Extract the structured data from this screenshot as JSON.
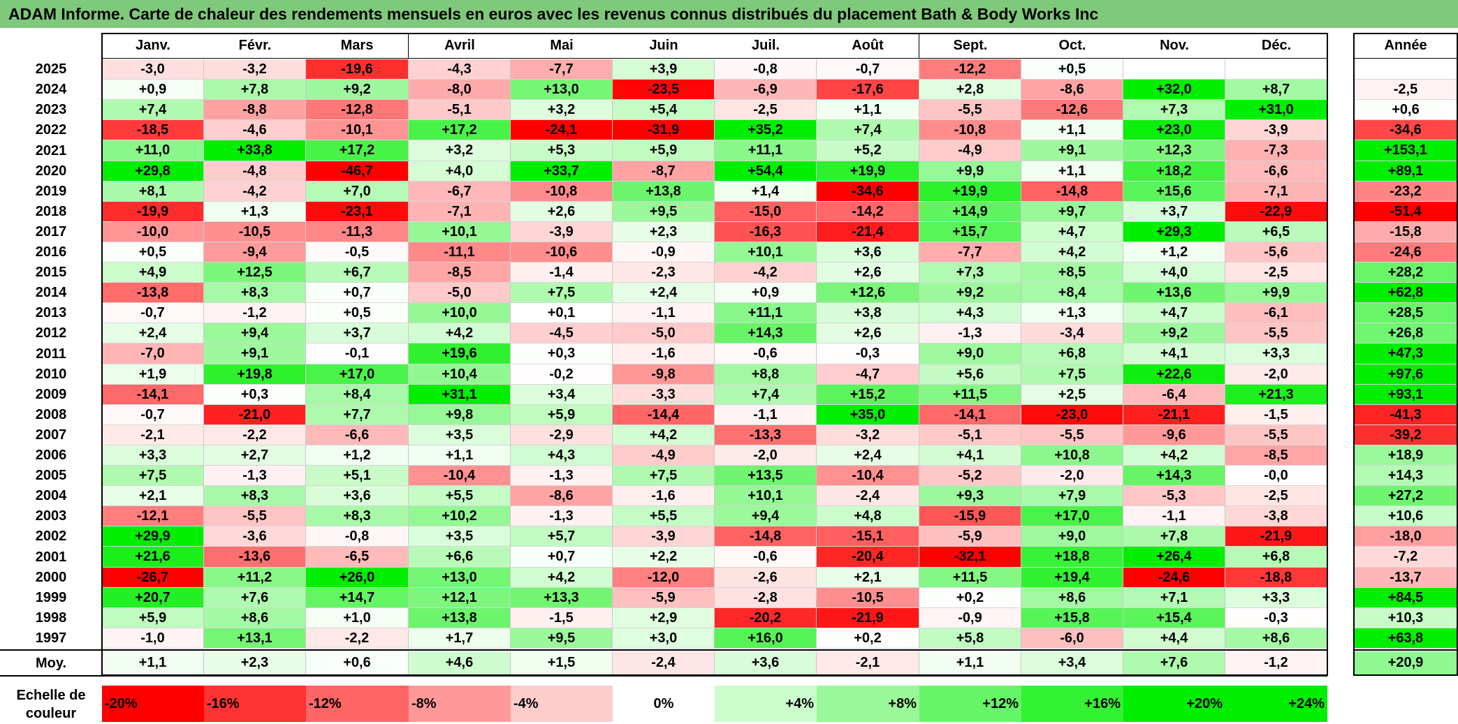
{
  "title": "ADAM Informe. Carte de chaleur des rendements mensuels en euros avec les revenus connus distribués du placement Bath & Body Works Inc",
  "chart_data": {
    "type": "heatmap",
    "title": "ADAM Informe. Carte de chaleur des rendements mensuels en euros avec les revenus connus distribués du placement Bath & Body Works Inc",
    "columns": [
      "Janv.",
      "Févr.",
      "Mars",
      "Avril",
      "Mai",
      "Juin",
      "Juil.",
      "Août",
      "Sept.",
      "Oct.",
      "Nov.",
      "Déc."
    ],
    "year_column_label": "Année",
    "rows": [
      {
        "year": "2025",
        "values": [
          "-3,0",
          "-3,2",
          "-19,6",
          "-4,3",
          "-7,7",
          "+3,9",
          "-0,8",
          "-0,7",
          "-12,2",
          "+0,5",
          "",
          ""
        ],
        "annual": ""
      },
      {
        "year": "2024",
        "values": [
          "+0,9",
          "+7,8",
          "+9,2",
          "-8,0",
          "+13,0",
          "-23,5",
          "-6,9",
          "-17,6",
          "+2,8",
          "-8,6",
          "+32,0",
          "+8,7"
        ],
        "annual": "-2,5"
      },
      {
        "year": "2023",
        "values": [
          "+7,4",
          "-8,8",
          "-12,8",
          "-5,1",
          "+3,2",
          "+5,4",
          "-2,5",
          "+1,1",
          "-5,5",
          "-12,6",
          "+7,3",
          "+31,0"
        ],
        "annual": "+0,6"
      },
      {
        "year": "2022",
        "values": [
          "-18,5",
          "-4,6",
          "-10,1",
          "+17,2",
          "-24,1",
          "-31,9",
          "+35,2",
          "+7,4",
          "-10,8",
          "+1,1",
          "+23,0",
          "-3,9"
        ],
        "annual": "-34,6"
      },
      {
        "year": "2021",
        "values": [
          "+11,0",
          "+33,8",
          "+17,2",
          "+3,2",
          "+5,3",
          "+5,9",
          "+11,1",
          "+5,2",
          "-4,9",
          "+9,1",
          "+12,3",
          "-7,3"
        ],
        "annual": "+153,1"
      },
      {
        "year": "2020",
        "values": [
          "+29,8",
          "-4,8",
          "-46,7",
          "+4,0",
          "+33,7",
          "-8,7",
          "+54,4",
          "+19,9",
          "+9,9",
          "+1,1",
          "+18,2",
          "-6,6"
        ],
        "annual": "+89,1"
      },
      {
        "year": "2019",
        "values": [
          "+8,1",
          "-4,2",
          "+7,0",
          "-6,7",
          "-10,8",
          "+13,8",
          "+1,4",
          "-34,6",
          "+19,9",
          "-14,8",
          "+15,6",
          "-7,1"
        ],
        "annual": "-23,2"
      },
      {
        "year": "2018",
        "values": [
          "-19,9",
          "+1,3",
          "-23,1",
          "-7,1",
          "+2,6",
          "+9,5",
          "-15,0",
          "-14,2",
          "+14,9",
          "+9,7",
          "+3,7",
          "-22,9"
        ],
        "annual": "-51,4"
      },
      {
        "year": "2017",
        "values": [
          "-10,0",
          "-10,5",
          "-11,3",
          "+10,1",
          "-3,9",
          "+2,3",
          "-16,3",
          "-21,4",
          "+15,7",
          "+4,7",
          "+29,3",
          "+6,5"
        ],
        "annual": "-15,8"
      },
      {
        "year": "2016",
        "values": [
          "+0,5",
          "-9,4",
          "-0,5",
          "-11,1",
          "-10,6",
          "-0,9",
          "+10,1",
          "+3,6",
          "-7,7",
          "+4,2",
          "+1,2",
          "-5,6"
        ],
        "annual": "-24,6"
      },
      {
        "year": "2015",
        "values": [
          "+4,9",
          "+12,5",
          "+6,7",
          "-8,5",
          "-1,4",
          "-2,3",
          "-4,2",
          "+2,6",
          "+7,3",
          "+8,5",
          "+4,0",
          "-2,5"
        ],
        "annual": "+28,2"
      },
      {
        "year": "2014",
        "values": [
          "-13,8",
          "+8,3",
          "+0,7",
          "-5,0",
          "+7,5",
          "+2,4",
          "+0,9",
          "+12,6",
          "+9,2",
          "+8,4",
          "+13,6",
          "+9,9"
        ],
        "annual": "+62,8"
      },
      {
        "year": "2013",
        "values": [
          "-0,7",
          "-1,2",
          "+0,5",
          "+10,0",
          "+0,1",
          "-1,1",
          "+11,1",
          "+3,8",
          "+4,3",
          "+1,3",
          "+4,7",
          "-6,1"
        ],
        "annual": "+28,5"
      },
      {
        "year": "2012",
        "values": [
          "+2,4",
          "+9,4",
          "+3,7",
          "+4,2",
          "-4,5",
          "-5,0",
          "+14,3",
          "+2,6",
          "-1,3",
          "-3,4",
          "+9,2",
          "-5,5"
        ],
        "annual": "+26,8"
      },
      {
        "year": "2011",
        "values": [
          "-7,0",
          "+9,1",
          "-0,1",
          "+19,6",
          "+0,3",
          "-1,6",
          "-0,6",
          "-0,3",
          "+9,0",
          "+6,8",
          "+4,1",
          "+3,3"
        ],
        "annual": "+47,3"
      },
      {
        "year": "2010",
        "values": [
          "+1,9",
          "+19,8",
          "+17,0",
          "+10,4",
          "-0,2",
          "-9,8",
          "+8,8",
          "-4,7",
          "+5,6",
          "+7,5",
          "+22,6",
          "-2,0"
        ],
        "annual": "+97,6"
      },
      {
        "year": "2009",
        "values": [
          "-14,1",
          "+0,3",
          "+8,4",
          "+31,1",
          "+3,4",
          "-3,3",
          "+7,4",
          "+15,2",
          "+11,5",
          "+2,5",
          "-6,4",
          "+21,3"
        ],
        "annual": "+93,1"
      },
      {
        "year": "2008",
        "values": [
          "-0,7",
          "-21,0",
          "+7,7",
          "+9,8",
          "+5,9",
          "-14,4",
          "-1,1",
          "+35,0",
          "-14,1",
          "-23,0",
          "-21,1",
          "-1,5"
        ],
        "annual": "-41,3"
      },
      {
        "year": "2007",
        "values": [
          "-2,1",
          "-2,2",
          "-6,6",
          "+3,5",
          "-2,9",
          "+4,2",
          "-13,3",
          "-3,2",
          "-5,1",
          "-5,5",
          "-9,6",
          "-5,5"
        ],
        "annual": "-39,2"
      },
      {
        "year": "2006",
        "values": [
          "+3,3",
          "+2,7",
          "+1,2",
          "+1,1",
          "+4,3",
          "-4,9",
          "-2,0",
          "+2,4",
          "+4,1",
          "+10,8",
          "+4,2",
          "-8,5"
        ],
        "annual": "+18,9"
      },
      {
        "year": "2005",
        "values": [
          "+7,5",
          "-1,3",
          "+5,1",
          "-10,4",
          "-1,3",
          "+7,5",
          "+13,5",
          "-10,4",
          "-5,2",
          "-2,0",
          "+14,3",
          "-0,0"
        ],
        "annual": "+14,3"
      },
      {
        "year": "2004",
        "values": [
          "+2,1",
          "+8,3",
          "+3,6",
          "+5,5",
          "-8,6",
          "-1,6",
          "+10,1",
          "-2,4",
          "+9,3",
          "+7,9",
          "-5,3",
          "-2,5"
        ],
        "annual": "+27,2"
      },
      {
        "year": "2003",
        "values": [
          "-12,1",
          "-5,5",
          "+8,3",
          "+10,2",
          "-1,3",
          "+5,5",
          "+9,4",
          "+4,8",
          "-15,9",
          "+17,0",
          "-1,1",
          "-3,8"
        ],
        "annual": "+10,6"
      },
      {
        "year": "2002",
        "values": [
          "+29,9",
          "-3,6",
          "-0,8",
          "+3,5",
          "+5,7",
          "-3,9",
          "-14,8",
          "-15,1",
          "-5,9",
          "+9,0",
          "+7,8",
          "-21,9"
        ],
        "annual": "-18,0"
      },
      {
        "year": "2001",
        "values": [
          "+21,6",
          "-13,6",
          "-6,5",
          "+6,6",
          "+0,7",
          "+2,2",
          "-0,6",
          "-20,4",
          "-32,1",
          "+18,8",
          "+26,4",
          "+6,8"
        ],
        "annual": "-7,2"
      },
      {
        "year": "2000",
        "values": [
          "-26,7",
          "+11,2",
          "+26,0",
          "+13,0",
          "+4,2",
          "-12,0",
          "-2,6",
          "+2,1",
          "+11,5",
          "+19,4",
          "-24,6",
          "-18,8"
        ],
        "annual": "-13,7"
      },
      {
        "year": "1999",
        "values": [
          "+20,7",
          "+7,6",
          "+14,7",
          "+12,1",
          "+13,3",
          "-5,9",
          "-2,8",
          "-10,5",
          "+0,2",
          "+8,6",
          "+7,1",
          "+3,3"
        ],
        "annual": "+84,5"
      },
      {
        "year": "1998",
        "values": [
          "+5,9",
          "+8,6",
          "+1,0",
          "+13,8",
          "-1,5",
          "+2,9",
          "-20,2",
          "-21,9",
          "-0,9",
          "+15,8",
          "+15,4",
          "-0,3"
        ],
        "annual": "+10,3"
      },
      {
        "year": "1997",
        "values": [
          "-1,0",
          "+13,1",
          "-2,2",
          "+1,7",
          "+9,5",
          "+3,0",
          "+16,0",
          "+0,2",
          "+5,8",
          "-6,0",
          "+4,4",
          "+8,6"
        ],
        "annual": "+63,8"
      }
    ],
    "average": {
      "label": "Moy.",
      "values": [
        "+1,1",
        "+2,3",
        "+0,6",
        "+4,6",
        "+1,5",
        "-2,4",
        "+3,6",
        "-2,1",
        "+1,1",
        "+3,4",
        "+7,6",
        "-1,2"
      ],
      "annual": "+20,9"
    },
    "scale": {
      "label": "Echelle de couleur",
      "steps": [
        "-20%",
        "-16%",
        "-12%",
        "-8%",
        "-4%",
        "0%",
        "+4%",
        "+8%",
        "+12%",
        "+16%",
        "+20%",
        "+24%"
      ],
      "step_values": [
        -20,
        -16,
        -12,
        -8,
        -4,
        0,
        4,
        8,
        12,
        16,
        20,
        24
      ]
    },
    "colors": {
      "negative_max": "#ff0000",
      "neutral": "#ffffff",
      "positive_max": "#00ee00",
      "title_bar": "#7fc97a"
    }
  }
}
